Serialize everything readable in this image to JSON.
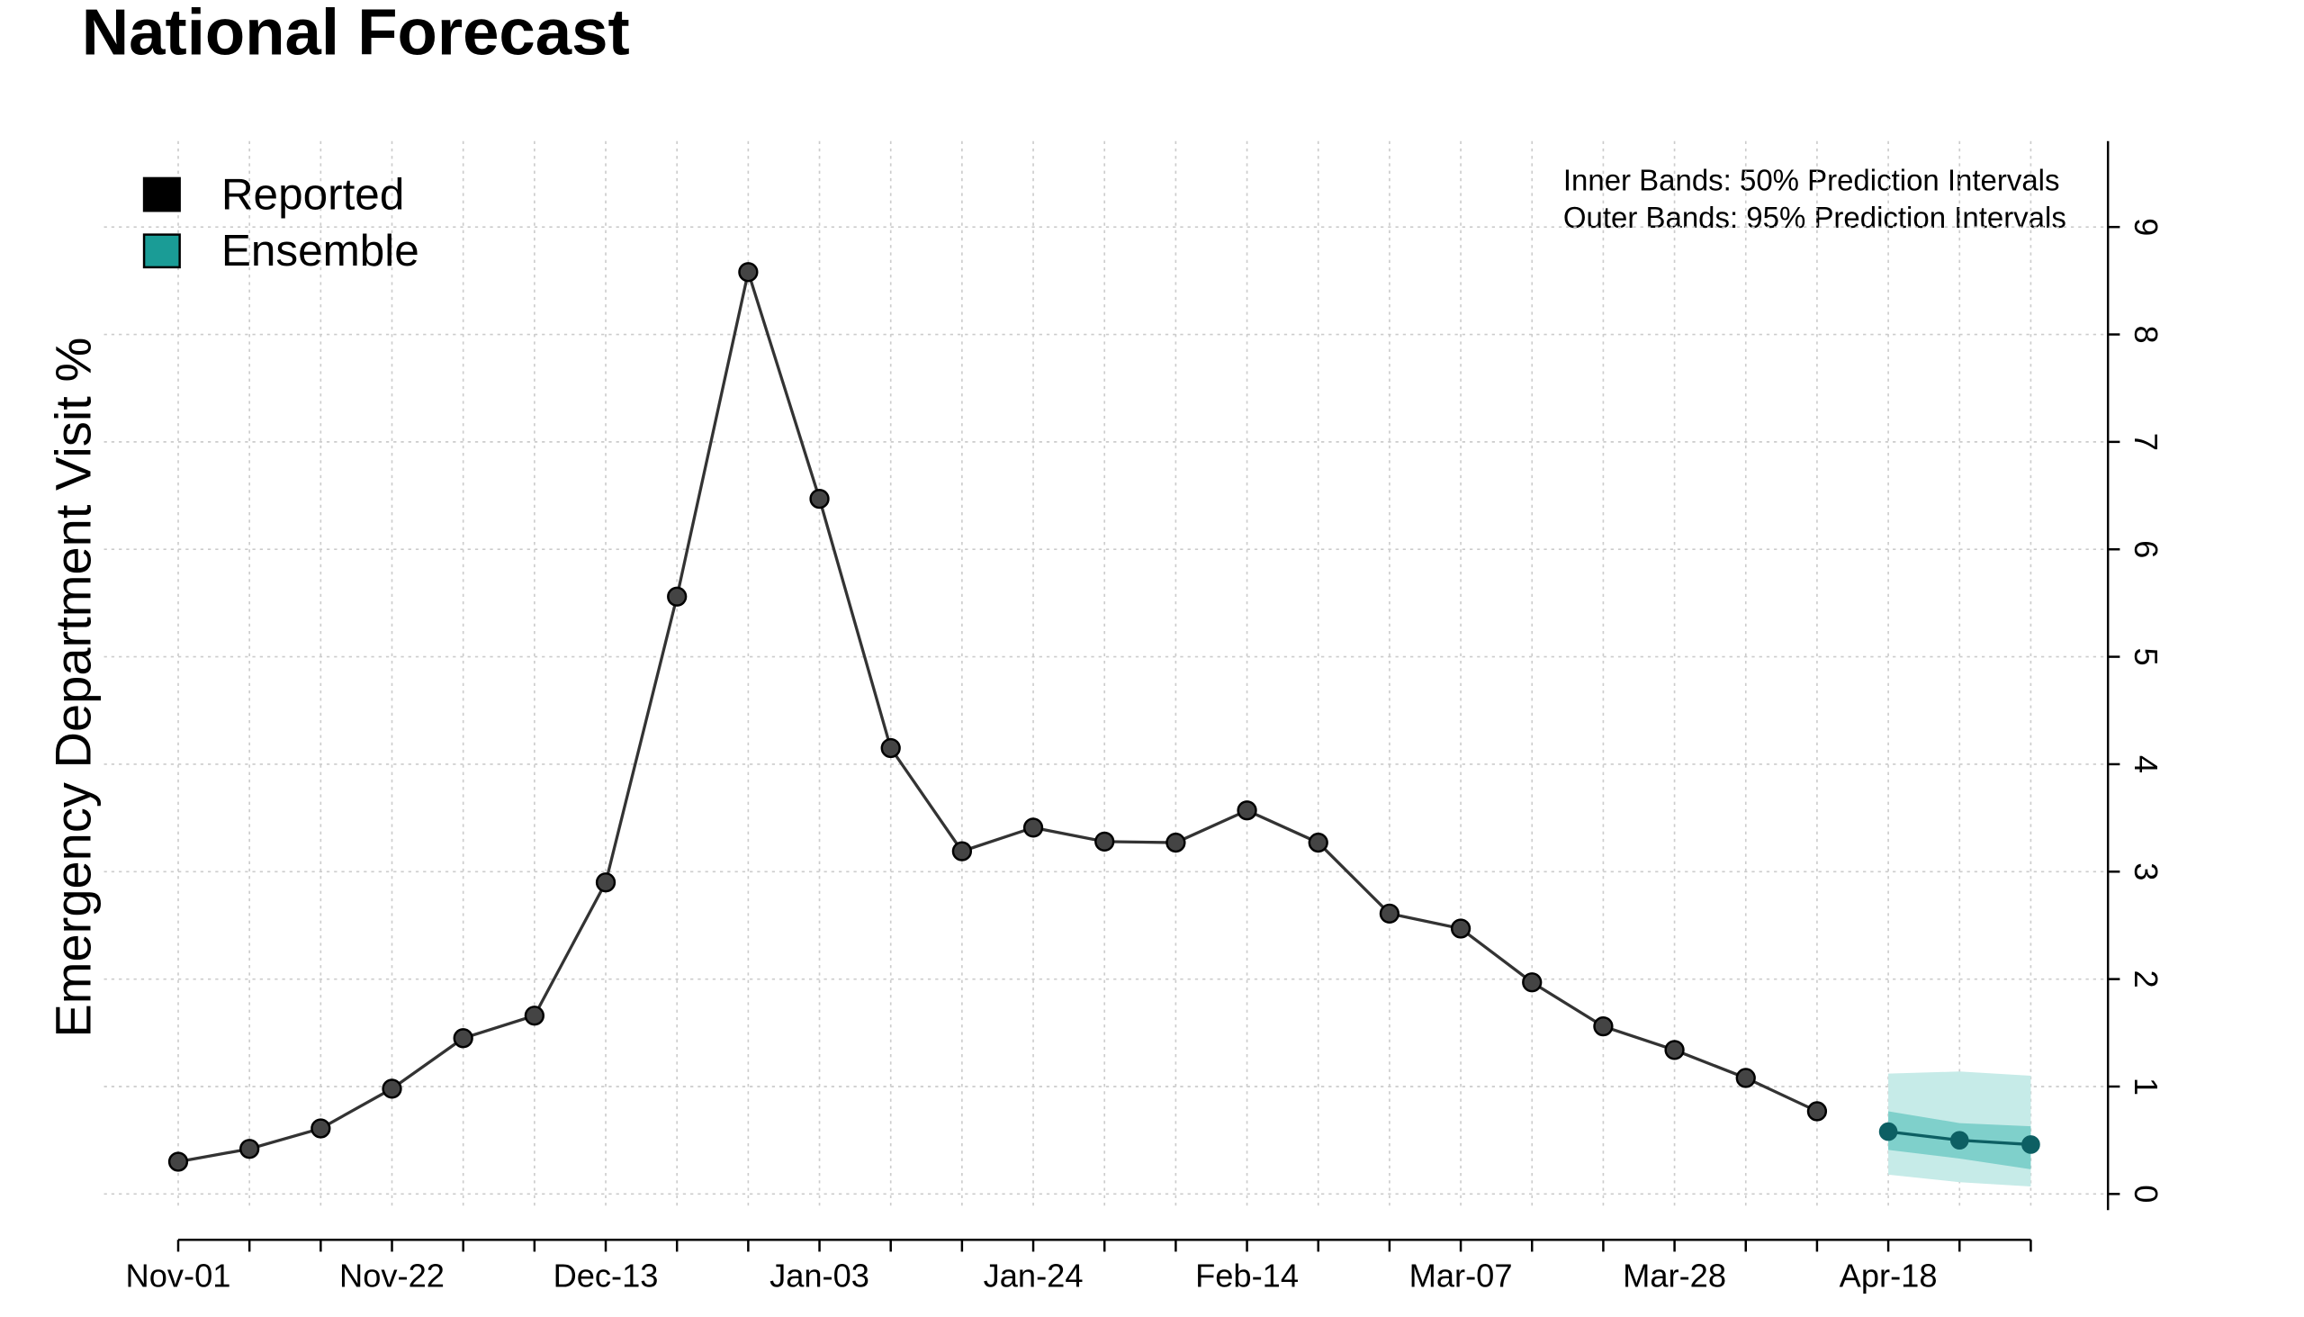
{
  "chart_data": {
    "type": "line",
    "title": "National Forecast",
    "y_label": "Emergency Department Visit %",
    "annotations": [
      "Inner Bands: 50% Prediction Intervals",
      "Outer Bands: 95% Prediction Intervals"
    ],
    "categories": [
      "Nov-01",
      null,
      null,
      "Nov-22",
      null,
      null,
      "Dec-13",
      null,
      null,
      "Jan-03",
      null,
      null,
      "Jan-24",
      null,
      null,
      "Feb-14",
      null,
      null,
      "Mar-07",
      null,
      null,
      "Mar-28",
      null,
      null,
      "Apr-18",
      null,
      null
    ],
    "series": [
      {
        "name": "Reported",
        "color": "#000000",
        "line_color": "#333333",
        "values": [
          0.3,
          0.42,
          0.61,
          0.98,
          1.45,
          1.66,
          2.9,
          5.56,
          8.58,
          6.47,
          4.15,
          3.19,
          3.41,
          3.28,
          3.27,
          3.57,
          3.27,
          2.61,
          2.47,
          1.97,
          1.56,
          1.34,
          1.08,
          0.77,
          null,
          null,
          null
        ]
      },
      {
        "name": "Ensemble",
        "color": "#1a9c96",
        "line_color": "#0d5f63",
        "band_95_color": "#c6ebe8",
        "band_50_color": "#7fd0cb",
        "values": [
          null,
          null,
          null,
          null,
          null,
          null,
          null,
          null,
          null,
          null,
          null,
          null,
          null,
          null,
          null,
          null,
          null,
          null,
          null,
          null,
          null,
          null,
          null,
          null,
          0.58,
          0.5,
          0.46
        ],
        "lower_95": [
          null,
          null,
          null,
          null,
          null,
          null,
          null,
          null,
          null,
          null,
          null,
          null,
          null,
          null,
          null,
          null,
          null,
          null,
          null,
          null,
          null,
          null,
          null,
          null,
          0.18,
          0.11,
          0.07
        ],
        "upper_95": [
          null,
          null,
          null,
          null,
          null,
          null,
          null,
          null,
          null,
          null,
          null,
          null,
          null,
          null,
          null,
          null,
          null,
          null,
          null,
          null,
          null,
          null,
          null,
          null,
          1.12,
          1.14,
          1.1
        ],
        "lower_50": [
          null,
          null,
          null,
          null,
          null,
          null,
          null,
          null,
          null,
          null,
          null,
          null,
          null,
          null,
          null,
          null,
          null,
          null,
          null,
          null,
          null,
          null,
          null,
          null,
          0.41,
          0.33,
          0.23
        ],
        "upper_50": [
          null,
          null,
          null,
          null,
          null,
          null,
          null,
          null,
          null,
          null,
          null,
          null,
          null,
          null,
          null,
          null,
          null,
          null,
          null,
          null,
          null,
          null,
          null,
          null,
          0.77,
          0.66,
          0.63
        ]
      }
    ],
    "ylim": [
      -0.15,
      9.8
    ],
    "yticks": [
      0,
      1,
      2,
      3,
      4,
      5,
      6,
      7,
      8,
      9
    ],
    "grid": true,
    "legend_position": "upper left"
  }
}
